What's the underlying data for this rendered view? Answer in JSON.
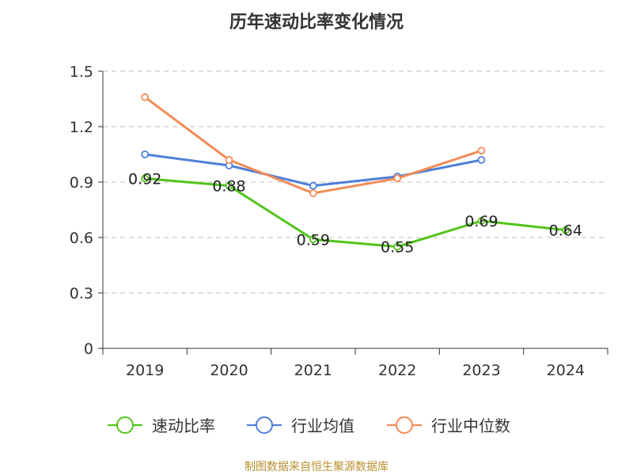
{
  "chart_data": {
    "type": "line",
    "title": "历年速动比率变化情况",
    "categories": [
      "2019",
      "2020",
      "2021",
      "2022",
      "2023",
      "2024"
    ],
    "ylim": [
      0,
      1.5
    ],
    "yticks": [
      "0",
      "0.3",
      "0.6",
      "0.9",
      "1.2",
      "1.5"
    ],
    "grid": true,
    "legend_position": "bottom",
    "series": [
      {
        "name": "速动比率",
        "color": "#52c41a",
        "values": [
          0.92,
          0.88,
          0.59,
          0.55,
          0.69,
          0.64
        ],
        "labels": [
          "0.92",
          "0.88",
          "0.59",
          "0.55",
          "0.69",
          "0.64"
        ]
      },
      {
        "name": "行业均值",
        "color": "#4e7fd9",
        "values": [
          1.05,
          0.99,
          0.88,
          0.93,
          1.02,
          null
        ]
      },
      {
        "name": "行业中位数",
        "color": "#f28c55",
        "values": [
          1.36,
          1.02,
          0.84,
          0.92,
          1.07,
          null
        ]
      }
    ]
  },
  "source": "制图数据来自恒生聚源数据库"
}
